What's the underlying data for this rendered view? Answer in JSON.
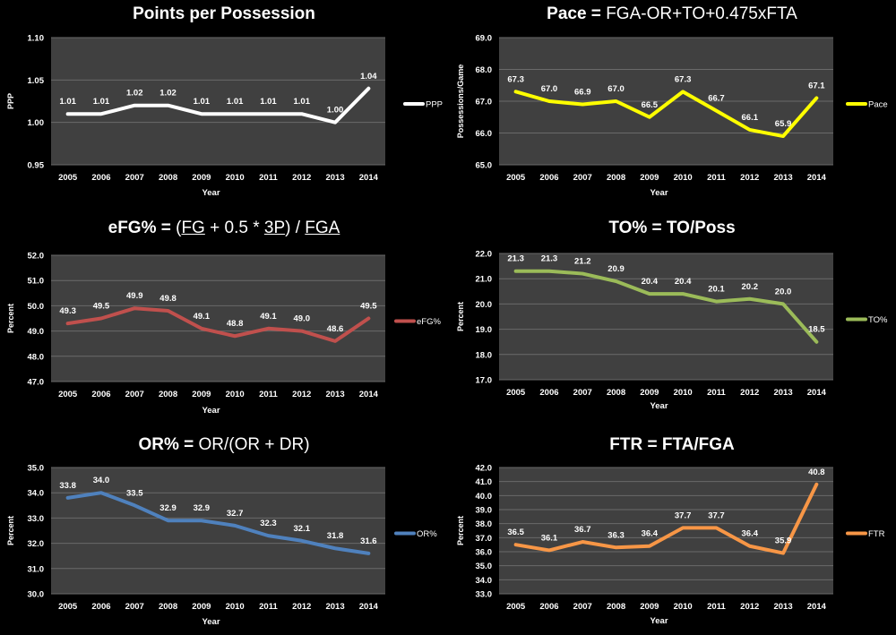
{
  "chart_data": [
    {
      "type": "line",
      "title_bold": "Points per Possession",
      "title_normal": "",
      "xlabel": "Year",
      "ylabel": "PPP",
      "ylim": [
        0.95,
        1.1
      ],
      "yticks": [
        "0.95",
        "1.00",
        "1.05",
        "1.10"
      ],
      "ystep": 0.05,
      "decimals": 2,
      "categories": [
        "2005",
        "2006",
        "2007",
        "2008",
        "2009",
        "2010",
        "2011",
        "2012",
        "2013",
        "2014"
      ],
      "series": [
        {
          "name": "PPP",
          "color": "#ffffff",
          "values": [
            1.01,
            1.01,
            1.02,
            1.02,
            1.01,
            1.01,
            1.01,
            1.01,
            1.0,
            1.04
          ]
        }
      ],
      "legend": "right"
    },
    {
      "type": "line",
      "title_bold": "Pace = ",
      "title_normal": "FGA-OR+TO+0.475xFTA",
      "xlabel": "Year",
      "ylabel": "Possessions/Game",
      "ylim": [
        65.0,
        69.0
      ],
      "yticks": [
        "65.0",
        "66.0",
        "67.0",
        "68.0",
        "69.0"
      ],
      "ystep": 1,
      "decimals": 1,
      "categories": [
        "2005",
        "2006",
        "2007",
        "2008",
        "2009",
        "2010",
        "2011",
        "2012",
        "2013",
        "2014"
      ],
      "series": [
        {
          "name": "Pace",
          "color": "#ffff00",
          "values": [
            67.3,
            67.0,
            66.9,
            67.0,
            66.5,
            67.3,
            66.7,
            66.1,
            65.9,
            67.1
          ]
        }
      ],
      "legend": "right"
    },
    {
      "type": "line",
      "title_bold": "eFG% = ",
      "title_normal": "",
      "title_rich": [
        "(",
        "FG",
        " + 0.5 * ",
        "3P",
        ") / ",
        "FGA"
      ],
      "xlabel": "Year",
      "ylabel": "Percent",
      "ylim": [
        47.0,
        52.0
      ],
      "yticks": [
        "47.0",
        "48.0",
        "49.0",
        "50.0",
        "51.0",
        "52.0"
      ],
      "ystep": 1,
      "decimals": 1,
      "categories": [
        "2005",
        "2006",
        "2007",
        "2008",
        "2009",
        "2010",
        "2011",
        "2012",
        "2013",
        "2014"
      ],
      "series": [
        {
          "name": "eFG%",
          "color": "#c0504d",
          "values": [
            49.3,
            49.5,
            49.9,
            49.8,
            49.1,
            48.8,
            49.1,
            49.0,
            48.6,
            49.5
          ]
        }
      ],
      "legend": "right"
    },
    {
      "type": "line",
      "title_bold": "TO% = TO/Poss",
      "title_normal": "",
      "xlabel": "Year",
      "ylabel": "Percent",
      "ylim": [
        17.0,
        22.0
      ],
      "yticks": [
        "17.0",
        "18.0",
        "19.0",
        "20.0",
        "21.0",
        "22.0"
      ],
      "ystep": 1,
      "decimals": 1,
      "categories": [
        "2005",
        "2006",
        "2007",
        "2008",
        "2009",
        "2010",
        "2011",
        "2012",
        "2013",
        "2014"
      ],
      "series": [
        {
          "name": "TO%",
          "color": "#9bbb59",
          "values": [
            21.3,
            21.3,
            21.2,
            20.9,
            20.4,
            20.4,
            20.1,
            20.2,
            20.0,
            18.5
          ]
        }
      ],
      "legend": "right"
    },
    {
      "type": "line",
      "title_bold": "OR% = ",
      "title_normal": "OR/(OR + DR)",
      "xlabel": "Year",
      "ylabel": "Percent",
      "ylim": [
        30.0,
        35.0
      ],
      "yticks": [
        "30.0",
        "31.0",
        "32.0",
        "33.0",
        "34.0",
        "35.0"
      ],
      "ystep": 1,
      "decimals": 1,
      "categories": [
        "2005",
        "2006",
        "2007",
        "2008",
        "2009",
        "2010",
        "2011",
        "2012",
        "2013",
        "2014"
      ],
      "series": [
        {
          "name": "OR%",
          "color": "#4f81bd",
          "values": [
            33.8,
            34.0,
            33.5,
            32.9,
            32.9,
            32.7,
            32.3,
            32.1,
            31.8,
            31.6
          ]
        }
      ],
      "legend": "right"
    },
    {
      "type": "line",
      "title_bold": "FTR = FTA/FGA",
      "title_normal": "",
      "xlabel": "Year",
      "ylabel": "Percent",
      "ylim": [
        33.0,
        42.0
      ],
      "yticks": [
        "33.0",
        "34.0",
        "35.0",
        "36.0",
        "37.0",
        "38.0",
        "39.0",
        "40.0",
        "41.0",
        "42.0"
      ],
      "ystep": 1,
      "decimals": 1,
      "categories": [
        "2005",
        "2006",
        "2007",
        "2008",
        "2009",
        "2010",
        "2011",
        "2012",
        "2013",
        "2014"
      ],
      "series": [
        {
          "name": "FTR",
          "color": "#f79646",
          "values": [
            36.5,
            36.1,
            36.7,
            36.3,
            36.4,
            37.7,
            37.7,
            36.4,
            35.9,
            40.8
          ]
        }
      ],
      "legend": "right"
    }
  ],
  "style": {
    "background": "#000000",
    "plot_bg": "#404040",
    "gridline": "#6a6a6a",
    "text": "#ffffff"
  }
}
